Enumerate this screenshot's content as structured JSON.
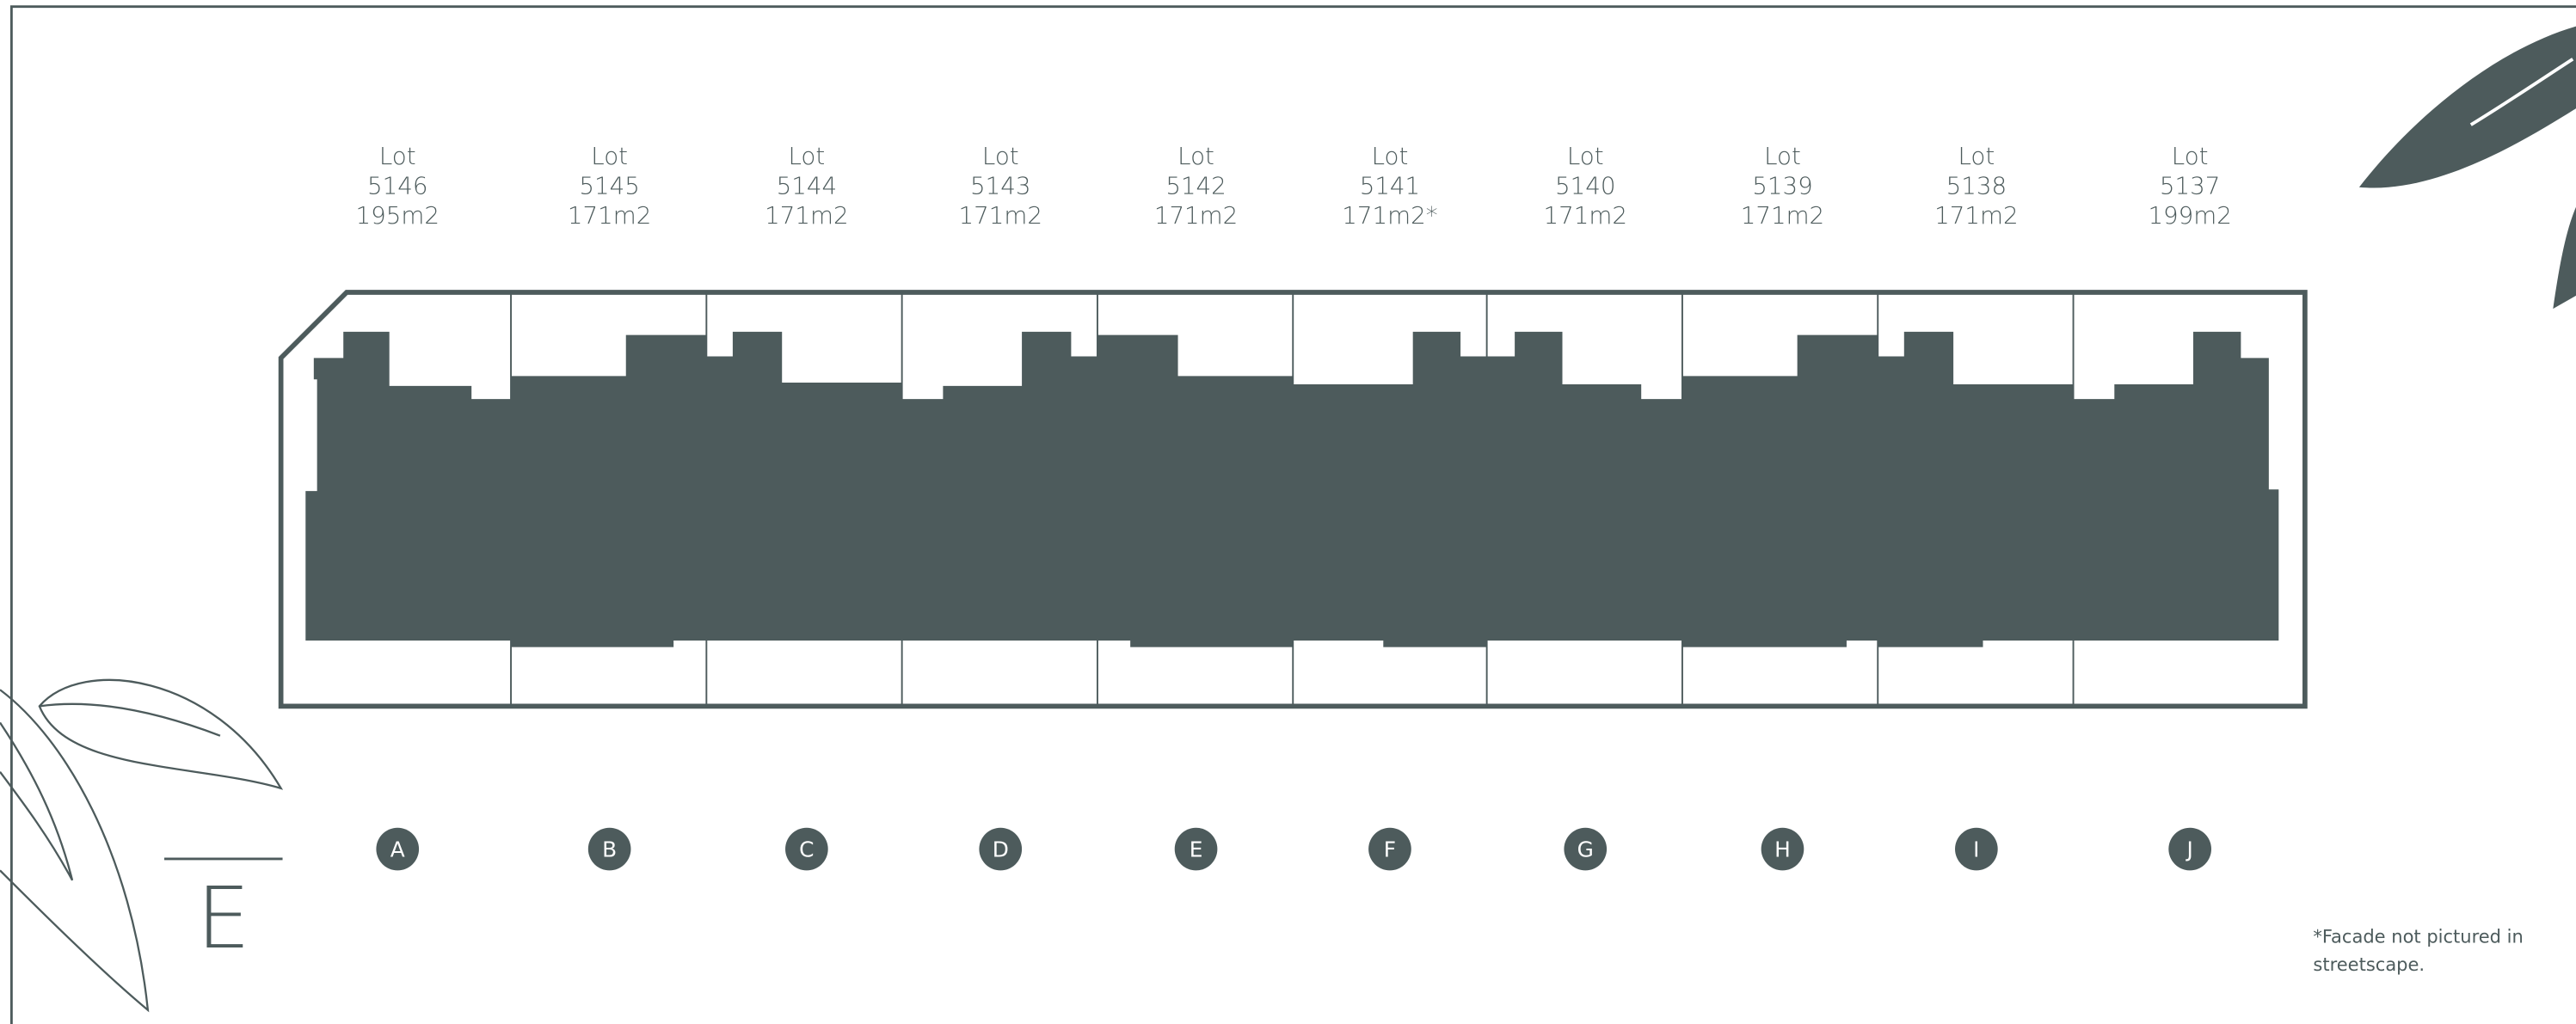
{
  "lots": [
    {
      "label": "Lot",
      "number": "5146",
      "area": "195m2",
      "letter": "A"
    },
    {
      "label": "Lot",
      "number": "5145",
      "area": "171m2",
      "letter": "B"
    },
    {
      "label": "Lot",
      "number": "5144",
      "area": "171m2",
      "letter": "C"
    },
    {
      "label": "Lot",
      "number": "5143",
      "area": "171m2",
      "letter": "D"
    },
    {
      "label": "Lot",
      "number": "5142",
      "area": "171m2",
      "letter": "E"
    },
    {
      "label": "Lot",
      "number": "5141",
      "area": "171m2*",
      "letter": "F"
    },
    {
      "label": "Lot",
      "number": "5140",
      "area": "171m2",
      "letter": "G"
    },
    {
      "label": "Lot",
      "number": "5139",
      "area": "171m2",
      "letter": "H"
    },
    {
      "label": "Lot",
      "number": "5138",
      "area": "171m2",
      "letter": "I"
    },
    {
      "label": "Lot",
      "number": "5137",
      "area": "199m2",
      "letter": "J"
    }
  ],
  "compass": "E",
  "note": {
    "lines": [
      "*Facade not pictured in",
      "streetscape."
    ]
  }
}
